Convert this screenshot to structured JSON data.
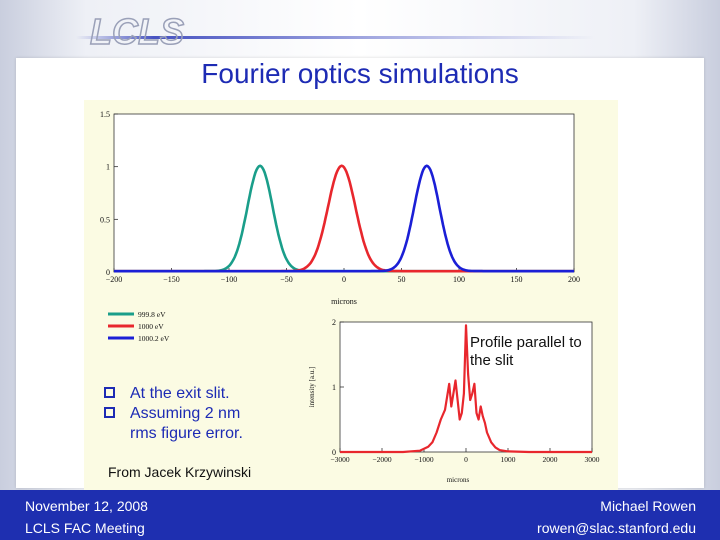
{
  "logo_text": "LCLS",
  "title": "Fourier optics simulations",
  "chart_data": [
    {
      "type": "line",
      "xlabel": "microns",
      "xlim": [
        -200,
        200
      ],
      "ylim": [
        0,
        1.5
      ],
      "x_ticks": [
        "-200",
        "-150",
        "-100",
        "-50",
        "0",
        "50",
        "100",
        "150",
        "200"
      ],
      "y_ticks": [
        "0",
        "0.5",
        "1",
        "1.5"
      ],
      "series": [
        {
          "name": "999.8 eV",
          "color": "#1a9e8a",
          "center": -73,
          "sigma": 11,
          "peak": 1.0
        },
        {
          "name": "1000 eV",
          "color": "#e8272d",
          "center": -2,
          "sigma": 12,
          "peak": 1.0
        },
        {
          "name": "1000.2 eV",
          "color": "#1b1fd6",
          "center": 72,
          "sigma": 11,
          "peak": 1.0
        }
      ],
      "legend": "bottom-left"
    },
    {
      "type": "line",
      "xlabel": "microns",
      "ylabel": "intensity [a.u.]",
      "xlim": [
        -3000,
        3000
      ],
      "ylim": [
        0,
        2
      ],
      "x_ticks": [
        "-3000",
        "-2000",
        "-1000",
        "0",
        "1000",
        "2000",
        "3000"
      ],
      "y_ticks": [
        "0",
        "1",
        "2"
      ],
      "annotation": "Profile parallel to the slit",
      "series": [
        {
          "color": "#e8272d",
          "x": [
            -3000,
            -1500,
            -1100,
            -900,
            -800,
            -700,
            -600,
            -500,
            -450,
            -400,
            -350,
            -300,
            -250,
            -200,
            -150,
            -100,
            -50,
            0,
            50,
            100,
            150,
            200,
            250,
            300,
            350,
            400,
            450,
            500,
            600,
            700,
            800,
            1000,
            1500,
            3000
          ],
          "y": [
            0,
            0,
            0.02,
            0.08,
            0.15,
            0.3,
            0.5,
            0.65,
            0.85,
            1.05,
            0.7,
            0.9,
            1.1,
            0.8,
            0.5,
            0.6,
            0.9,
            1.95,
            1.2,
            0.8,
            0.9,
            1.05,
            0.6,
            0.5,
            0.7,
            0.55,
            0.45,
            0.3,
            0.15,
            0.07,
            0.03,
            0.01,
            0,
            0
          ]
        }
      ]
    }
  ],
  "bullets": [
    "At the exit slit.",
    "Assuming 2 nm",
    "rms figure error."
  ],
  "credit": "From Jacek Krzywinski",
  "footer": {
    "date": "November 12, 2008",
    "meeting": "LCLS FAC Meeting",
    "author": "Michael Rowen",
    "email": "rowen@slac.stanford.edu"
  }
}
